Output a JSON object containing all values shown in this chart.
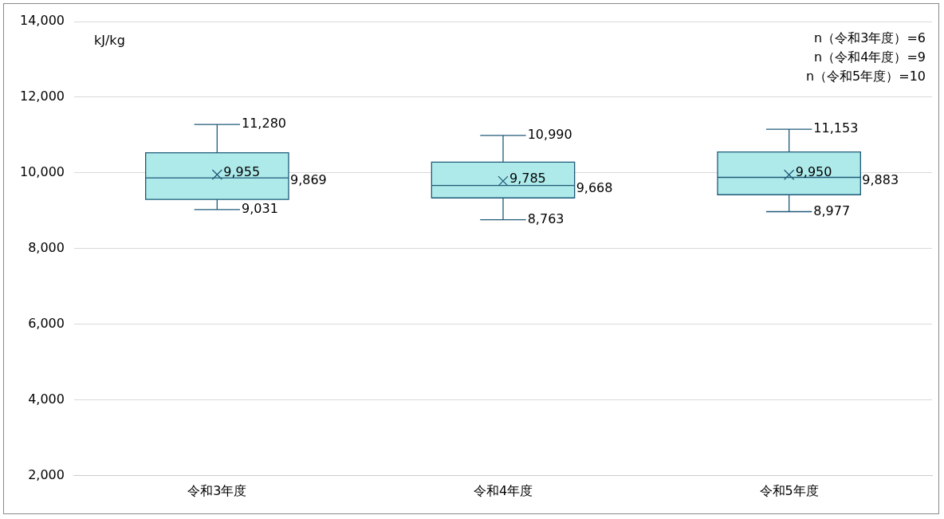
{
  "chart_data": {
    "type": "box",
    "ylabel": "kJ/kg",
    "categories": [
      "令和3年度",
      "令和4年度",
      "令和5年度"
    ],
    "series": [
      {
        "color": "#aeeaea",
        "boxes": [
          {
            "low": 9031,
            "q1": 9300,
            "median": 9869,
            "q3": 10535,
            "high": 11280,
            "mean": 9955
          },
          {
            "low": 8763,
            "q1": 9340,
            "median": 9668,
            "q3": 10285,
            "high": 10990,
            "mean": 9785
          },
          {
            "low": 8977,
            "q1": 9425,
            "median": 9883,
            "q3": 10555,
            "high": 11153,
            "mean": 9950
          }
        ]
      }
    ],
    "ylim": [
      2000,
      14000
    ],
    "yticks": [
      {
        "value": 2000,
        "label": "2,000"
      },
      {
        "value": 4000,
        "label": "4,000"
      },
      {
        "value": 6000,
        "label": "6,000"
      },
      {
        "value": 8000,
        "label": "8,000"
      },
      {
        "value": 10000,
        "label": "10,000"
      },
      {
        "value": 12000,
        "label": "12,000"
      },
      {
        "value": 14000,
        "label": "14,000"
      }
    ],
    "grid": "y",
    "legend": false,
    "annotations": [
      "n（令和3年度）=6",
      "n（令和4年度）=9",
      "n（令和5年度）=10",
      "9,869",
      "9,668",
      "9,883",
      "9,785",
      {
        "text": "11,280",
        "x": "令和3年度",
        "y": 11280
      },
      {
        "text": "9,955",
        "x": "令和3年度",
        "y": 9955
      },
      {
        "text": "9,031",
        "x": "令和3年度",
        "y": 9031
      },
      {
        "text": "10,990",
        "x": "令和4年度",
        "y": 10990
      },
      {
        "text": "8,763",
        "x": "令和4年度",
        "y": 8763
      },
      {
        "text": "11,153",
        "x": "令和5年度",
        "y": 11153
      },
      {
        "text": "9,950",
        "x": "令和5年度",
        "y": 9950
      },
      {
        "text": "8,977",
        "x": "令和5年度",
        "y": 8977
      }
    ]
  }
}
